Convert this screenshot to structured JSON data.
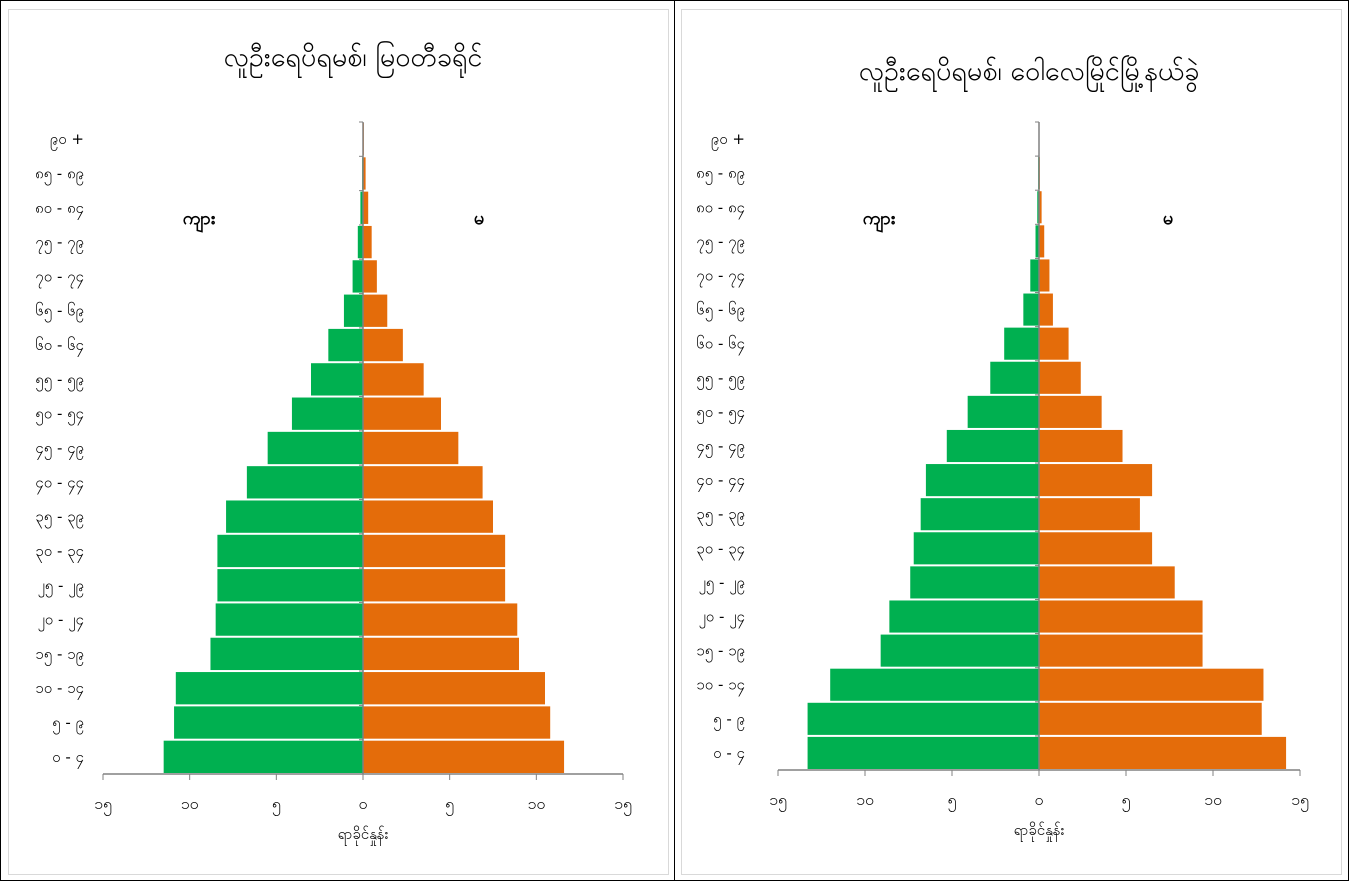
{
  "colors": {
    "male": "#00b050",
    "female": "#e46c0a",
    "axis": "#808080"
  },
  "chart_data": [
    {
      "type": "bar",
      "orientation": "horizontal-population-pyramid",
      "title": "လူဦးရေပိရမစ်၊ မြဝတီခရိုင်",
      "xlabel": "ရာခိုင်နှုန်း",
      "ylabel": "",
      "xlim": [
        -15,
        15
      ],
      "x_ticks": [
        "၁၅",
        "၁၀",
        "၅",
        "၀",
        "၅",
        "၁၀",
        "၁၅"
      ],
      "categories": [
        "၀ - ၄",
        "၅ - ၉",
        "၁၀ - ၁၄",
        "၁၅ - ၁၉",
        "၂၀ - ၂၄",
        "၂၅ - ၂၉",
        "၃၀ - ၃၄",
        "၃၅ - ၃၉",
        "၄၀ - ၄၄",
        "၄၅ - ၄၉",
        "၅၀ - ၅၄",
        "၅၅ - ၅၉",
        "၆၀ - ၆၄",
        "၆၅ - ၆၉",
        "၇၀ - ၇၄",
        "၇၅ - ၇၉",
        "၈၀ - ၈၄",
        "၈၅ - ၈၉",
        "၉၀ +"
      ],
      "legend_labels": {
        "male": "ကျား",
        "female": "မ"
      },
      "series": [
        {
          "name": "ကျား",
          "values": [
            11.5,
            10.9,
            10.8,
            8.8,
            8.5,
            8.4,
            8.4,
            7.9,
            6.7,
            5.5,
            4.1,
            3.0,
            2.0,
            1.1,
            0.6,
            0.3,
            0.15,
            0.05,
            0.02
          ]
        },
        {
          "name": "မ",
          "values": [
            11.6,
            10.8,
            10.5,
            9.0,
            8.9,
            8.2,
            8.2,
            7.5,
            6.9,
            5.5,
            4.5,
            3.5,
            2.3,
            1.4,
            0.8,
            0.5,
            0.3,
            0.15,
            0.05
          ]
        }
      ]
    },
    {
      "type": "bar",
      "orientation": "horizontal-population-pyramid",
      "title": "လူဦးရေပိရမစ်၊ ဝေါလေမြိုင်မြို့နယ်ခွဲ",
      "xlabel": "ရာခိုင်နှုန်း",
      "ylabel": "",
      "xlim": [
        -15,
        15
      ],
      "x_ticks": [
        "၁၅",
        "၁၀",
        "၅",
        "၀",
        "၅",
        "၁၀",
        "၁၅"
      ],
      "categories": [
        "၀ - ၄",
        "၅ - ၉",
        "၁၀ - ၁၄",
        "၁၅ - ၁၉",
        "၂၀ - ၂၄",
        "၂၅ - ၂၉",
        "၃၀ - ၃၄",
        "၃၅ - ၃၉",
        "၄၀ - ၄၄",
        "၄၅ - ၄၉",
        "၅၀ - ၅၄",
        "၅၅ - ၅၉",
        "၆၀ - ၆၄",
        "၆၅ - ၆၉",
        "၇၀ - ၇၄",
        "၇၅ - ၇၉",
        "၈၀ - ၈၄",
        "၈၅ - ၈၉",
        "၉၀ +"
      ],
      "legend_labels": {
        "male": "ကျား",
        "female": "မ"
      },
      "series": [
        {
          "name": "ကျား",
          "values": [
            13.3,
            13.3,
            12.0,
            9.1,
            8.6,
            7.4,
            7.2,
            6.8,
            6.5,
            5.3,
            4.1,
            2.8,
            2.0,
            0.9,
            0.5,
            0.2,
            0.1,
            0.05,
            0.02
          ]
        },
        {
          "name": "မ",
          "values": [
            14.2,
            12.8,
            12.9,
            9.4,
            9.4,
            7.8,
            6.5,
            5.8,
            6.5,
            4.8,
            3.6,
            2.4,
            1.7,
            0.8,
            0.6,
            0.3,
            0.15,
            0.05,
            0.02
          ]
        }
      ]
    }
  ]
}
